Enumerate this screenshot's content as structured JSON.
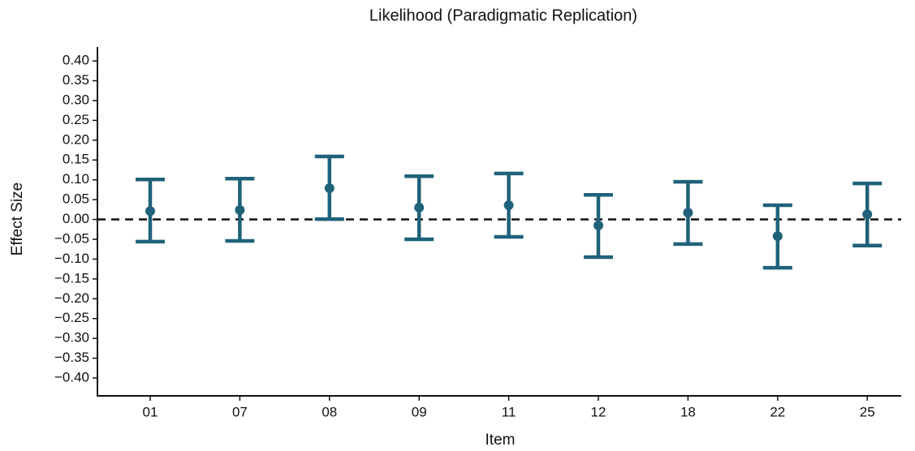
{
  "chart_data": {
    "type": "errorbar",
    "title": "Likelihood (Paradigmatic Replication)",
    "x_label": "Item",
    "y_label": "Effect Size",
    "categories": [
      "01",
      "07",
      "08",
      "09",
      "11",
      "12",
      "18",
      "22",
      "25"
    ],
    "series": [
      {
        "color": "#1f627a",
        "values": [
          0.021,
          0.024,
          0.079,
          0.03,
          0.036,
          -0.015,
          0.017,
          -0.042,
          0.013
        ],
        "lower": [
          -0.056,
          -0.054,
          0.001,
          -0.05,
          -0.044,
          -0.095,
          -0.062,
          -0.122,
          -0.066
        ],
        "upper": [
          0.101,
          0.103,
          0.159,
          0.109,
          0.116,
          0.062,
          0.095,
          0.036,
          0.091
        ]
      }
    ],
    "ylim": [
      -0.445,
      0.435
    ],
    "yticks": [
      {
        "value": -0.4,
        "label": "−0.40"
      },
      {
        "value": -0.35,
        "label": "−0.35"
      },
      {
        "value": -0.3,
        "label": "−0.30"
      },
      {
        "value": -0.25,
        "label": "−0.25"
      },
      {
        "value": -0.2,
        "label": "−0.20"
      },
      {
        "value": -0.15,
        "label": "−0.15"
      },
      {
        "value": -0.1,
        "label": "−0.10"
      },
      {
        "value": -0.05,
        "label": "−0.05"
      },
      {
        "value": 0,
        "label": "0.00"
      },
      {
        "value": 0.05,
        "label": "0.05"
      },
      {
        "value": 0.1,
        "label": "0.10"
      },
      {
        "value": 0.15,
        "label": "0.15"
      },
      {
        "value": 0.2,
        "label": "0.20"
      },
      {
        "value": 0.25,
        "label": "0.25"
      },
      {
        "value": 0.3,
        "label": "0.30"
      },
      {
        "value": 0.35,
        "label": "0.35"
      },
      {
        "value": 0.4,
        "label": "0.40"
      }
    ],
    "hline": 0,
    "grid": false
  }
}
